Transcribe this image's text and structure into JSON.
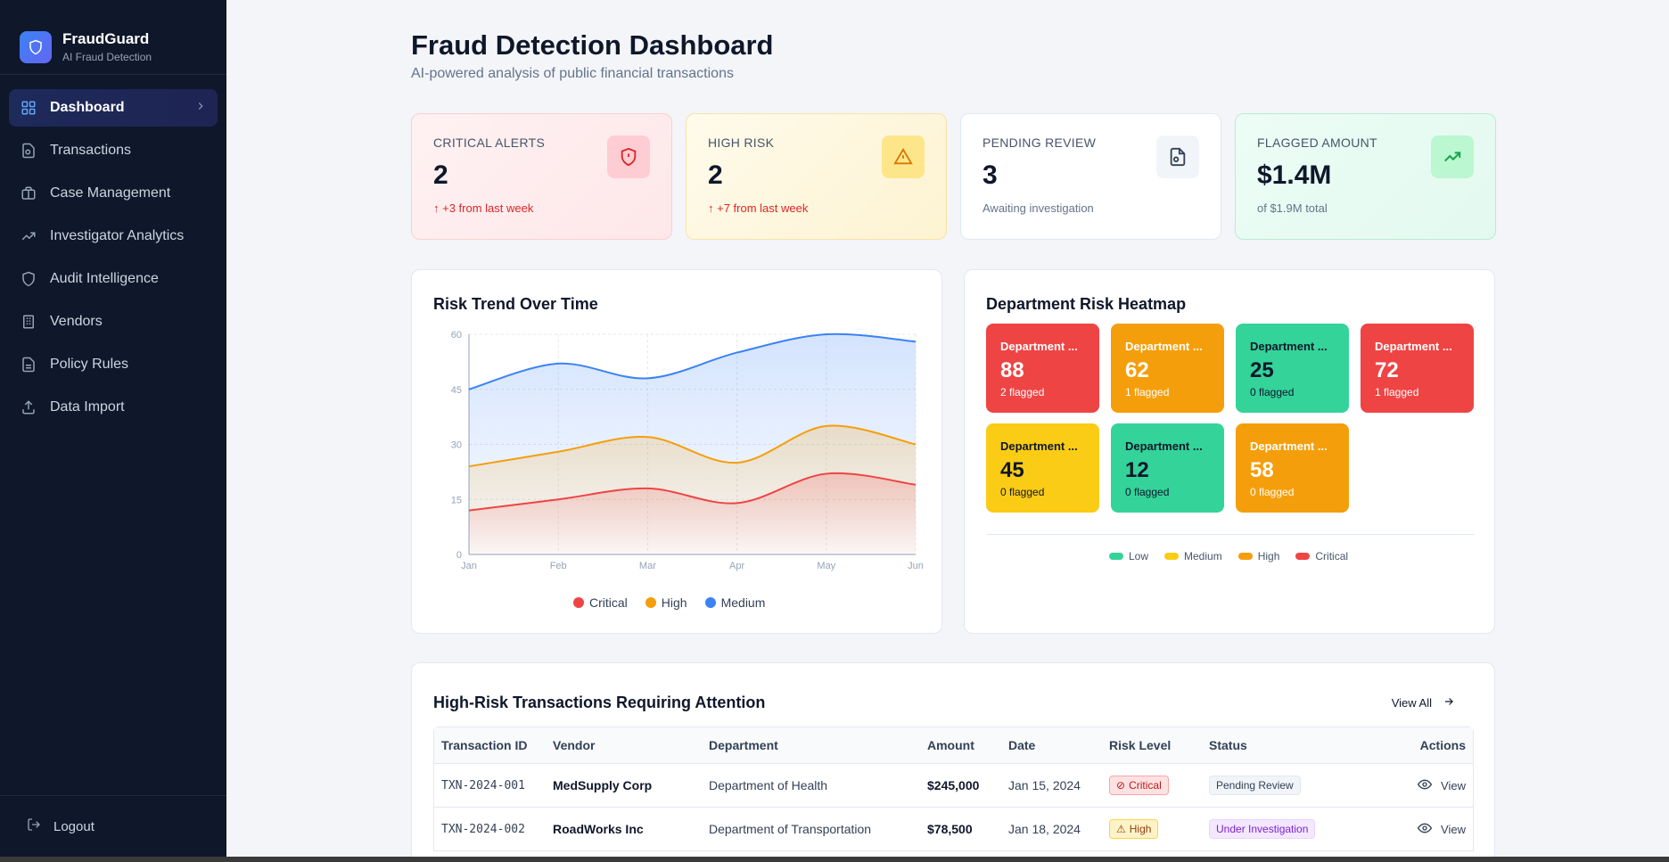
{
  "brand": {
    "name": "FraudGuard",
    "subtitle": "AI Fraud Detection",
    "logo_icon": "shield-icon"
  },
  "nav": [
    {
      "label": "Dashboard",
      "icon": "grid-icon",
      "active": true
    },
    {
      "label": "Transactions",
      "icon": "file-search-icon"
    },
    {
      "label": "Case Management",
      "icon": "briefcase-icon"
    },
    {
      "label": "Investigator Analytics",
      "icon": "trending-up-icon"
    },
    {
      "label": "Audit Intelligence",
      "icon": "shield-icon"
    },
    {
      "label": "Vendors",
      "icon": "building-icon"
    },
    {
      "label": "Policy Rules",
      "icon": "document-icon"
    },
    {
      "label": "Data Import",
      "icon": "upload-icon"
    }
  ],
  "logout": "Logout",
  "page": {
    "title": "Fraud Detection Dashboard",
    "subtitle": "AI-powered analysis of public financial transactions"
  },
  "stats": [
    {
      "label": "CRITICAL ALERTS",
      "value": "2",
      "note": "↑ +3 from last week",
      "icon": "shield-alert-icon",
      "theme": "red"
    },
    {
      "label": "HIGH RISK",
      "value": "2",
      "note": "↑ +7 from last week",
      "icon": "warning-triangle-icon",
      "theme": "yellow"
    },
    {
      "label": "PENDING REVIEW",
      "value": "3",
      "note": "Awaiting investigation",
      "icon": "file-search-icon",
      "theme": "white"
    },
    {
      "label": "FLAGGED AMOUNT",
      "value": "$1.4M",
      "note": "of $1.9M total",
      "icon": "trending-up-icon",
      "theme": "green"
    }
  ],
  "risk_trend": {
    "title": "Risk Trend Over Time",
    "chart_data": {
      "type": "area",
      "x": [
        "Jan",
        "Feb",
        "Mar",
        "Apr",
        "May",
        "Jun"
      ],
      "ylim": [
        0,
        60
      ],
      "yticks": [
        0,
        15,
        30,
        45,
        60
      ],
      "grid": true,
      "legend_position": "bottom",
      "series": [
        {
          "name": "Critical",
          "color": "#ef4444",
          "values": [
            12,
            15,
            18,
            14,
            22,
            19
          ]
        },
        {
          "name": "High",
          "color": "#f59e0b",
          "values": [
            24,
            28,
            32,
            25,
            35,
            30
          ]
        },
        {
          "name": "Medium",
          "color": "#3b82f6",
          "values": [
            45,
            52,
            48,
            55,
            60,
            58
          ]
        }
      ]
    }
  },
  "heatmap": {
    "title": "Department Risk Heatmap",
    "tiles": [
      {
        "name": "Department ...",
        "score": "88",
        "flagged": "2 flagged",
        "color": "#ef4444",
        "dark": false
      },
      {
        "name": "Department ...",
        "score": "62",
        "flagged": "1 flagged",
        "color": "#f59e0b",
        "dark": false
      },
      {
        "name": "Department ...",
        "score": "25",
        "flagged": "0 flagged",
        "color": "#34d399",
        "dark": true
      },
      {
        "name": "Department ...",
        "score": "72",
        "flagged": "1 flagged",
        "color": "#ef4444",
        "dark": false
      },
      {
        "name": "Department ...",
        "score": "45",
        "flagged": "0 flagged",
        "color": "#facc15",
        "dark": true
      },
      {
        "name": "Department ...",
        "score": "12",
        "flagged": "0 flagged",
        "color": "#34d399",
        "dark": true
      },
      {
        "name": "Department ...",
        "score": "58",
        "flagged": "0 flagged",
        "color": "#f59e0b",
        "dark": false
      }
    ],
    "legend": [
      {
        "label": "Low",
        "color": "#34d399"
      },
      {
        "label": "Medium",
        "color": "#facc15"
      },
      {
        "label": "High",
        "color": "#f59e0b"
      },
      {
        "label": "Critical",
        "color": "#ef4444"
      }
    ]
  },
  "transactions": {
    "title": "High-Risk Transactions Requiring Attention",
    "view_all": "View All",
    "columns": [
      "Transaction ID",
      "Vendor",
      "Department",
      "Amount",
      "Date",
      "Risk Level",
      "Status",
      "Actions"
    ],
    "rows": [
      {
        "id": "TXN-2024-001",
        "vendor": "MedSupply Corp",
        "department": "Department of Health",
        "amount": "$245,000",
        "date": "Jan 15, 2024",
        "risk": "Critical",
        "risk_class": "crit",
        "status": "Pending Review",
        "status_class": "pend",
        "action": "View"
      },
      {
        "id": "TXN-2024-002",
        "vendor": "RoadWorks Inc",
        "department": "Department of Transportation",
        "amount": "$78,500",
        "date": "Jan 18, 2024",
        "risk": "High",
        "risk_class": "high",
        "status": "Under Investigation",
        "status_class": "inv",
        "action": "View"
      }
    ]
  }
}
